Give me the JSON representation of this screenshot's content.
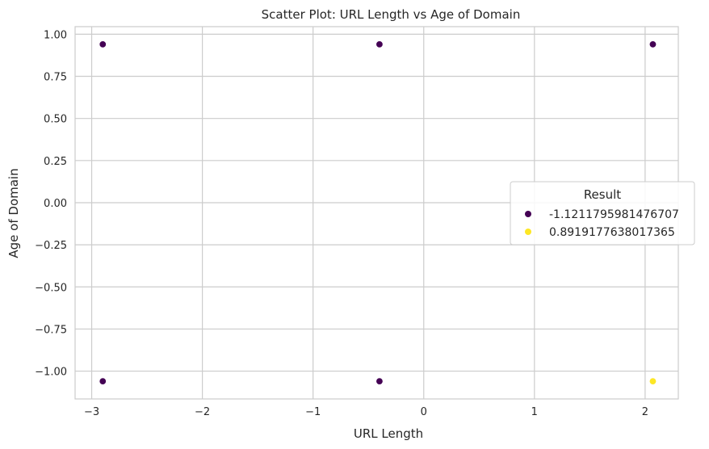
{
  "chart_data": {
    "type": "scatter",
    "title": "Scatter Plot: URL Length vs Age of Domain",
    "xlabel": "URL Length",
    "ylabel": "Age of Domain",
    "xlim": [
      -3.15,
      2.3
    ],
    "ylim": [
      -1.165,
      1.045
    ],
    "xticks": [
      -3,
      -2,
      -1,
      0,
      1,
      2
    ],
    "xtick_labels": [
      "−3",
      "−2",
      "−1",
      "0",
      "1",
      "2"
    ],
    "yticks": [
      1.0,
      0.75,
      0.5,
      0.25,
      0.0,
      -0.25,
      -0.5,
      -0.75,
      -1.0
    ],
    "ytick_labels": [
      "1.00",
      "0.75",
      "0.50",
      "0.25",
      "0.00",
      "−0.25",
      "−0.50",
      "−0.75",
      "−1.00"
    ],
    "grid": true,
    "legend": {
      "title": "Result",
      "placement": "center-right"
    },
    "series": [
      {
        "name": "-1.1211795981476707",
        "color": "#440154",
        "points": [
          {
            "x": -2.9,
            "y": 0.94
          },
          {
            "x": -0.4,
            "y": 0.94
          },
          {
            "x": 2.07,
            "y": 0.94
          },
          {
            "x": -2.9,
            "y": -1.06
          },
          {
            "x": -0.4,
            "y": -1.06
          }
        ]
      },
      {
        "name": "0.8919177638017365",
        "color": "#fde725",
        "points": [
          {
            "x": 2.07,
            "y": -1.06
          }
        ]
      }
    ]
  }
}
